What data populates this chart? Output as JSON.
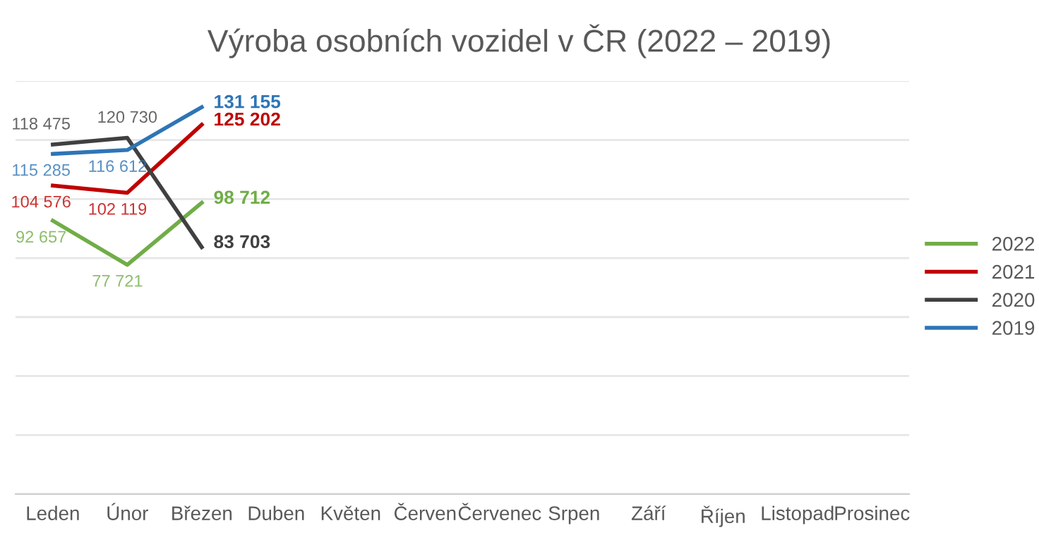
{
  "chart_data": {
    "type": "line",
    "title": "Výroba osobních vozidel v ČR (2022 – 2019)",
    "categories": [
      "Leden",
      "Únor",
      "Březen",
      "Duben",
      "Květen",
      "Červen",
      "Červenec",
      "Srpen",
      "Září",
      "Říjen",
      "Listopad",
      "Prosinec"
    ],
    "series": [
      {
        "name": "2022",
        "color": "#70ad47",
        "values": [
          92657,
          77721,
          98712,
          null,
          null,
          null,
          null,
          null,
          null,
          null,
          null,
          null
        ]
      },
      {
        "name": "2021",
        "color": "#c00000",
        "values": [
          104576,
          102119,
          125202,
          null,
          null,
          null,
          null,
          null,
          null,
          null,
          null,
          null
        ]
      },
      {
        "name": "2020",
        "color": "#404040",
        "values": [
          118475,
          120730,
          83703,
          null,
          null,
          null,
          null,
          null,
          null,
          null,
          null,
          null
        ]
      },
      {
        "name": "2019",
        "color": "#2e75b6",
        "values": [
          115285,
          116612,
          131155,
          null,
          null,
          null,
          null,
          null,
          null,
          null,
          null,
          null
        ]
      }
    ],
    "ylim": [
      0,
      140000
    ],
    "yticks": [
      {
        "value": 0,
        "label": null
      },
      {
        "value": 20000,
        "label": null
      },
      {
        "value": 40000,
        "label": null
      },
      {
        "value": 60000,
        "label": null
      },
      {
        "value": 80000,
        "label": null
      },
      {
        "value": 100000,
        "label": null
      },
      {
        "value": 120000,
        "label": null
      },
      {
        "value": 140000,
        "label": null
      }
    ],
    "grid": "y",
    "legend": "right",
    "data_labels": true,
    "marker": "none",
    "line_style": "solid"
  }
}
